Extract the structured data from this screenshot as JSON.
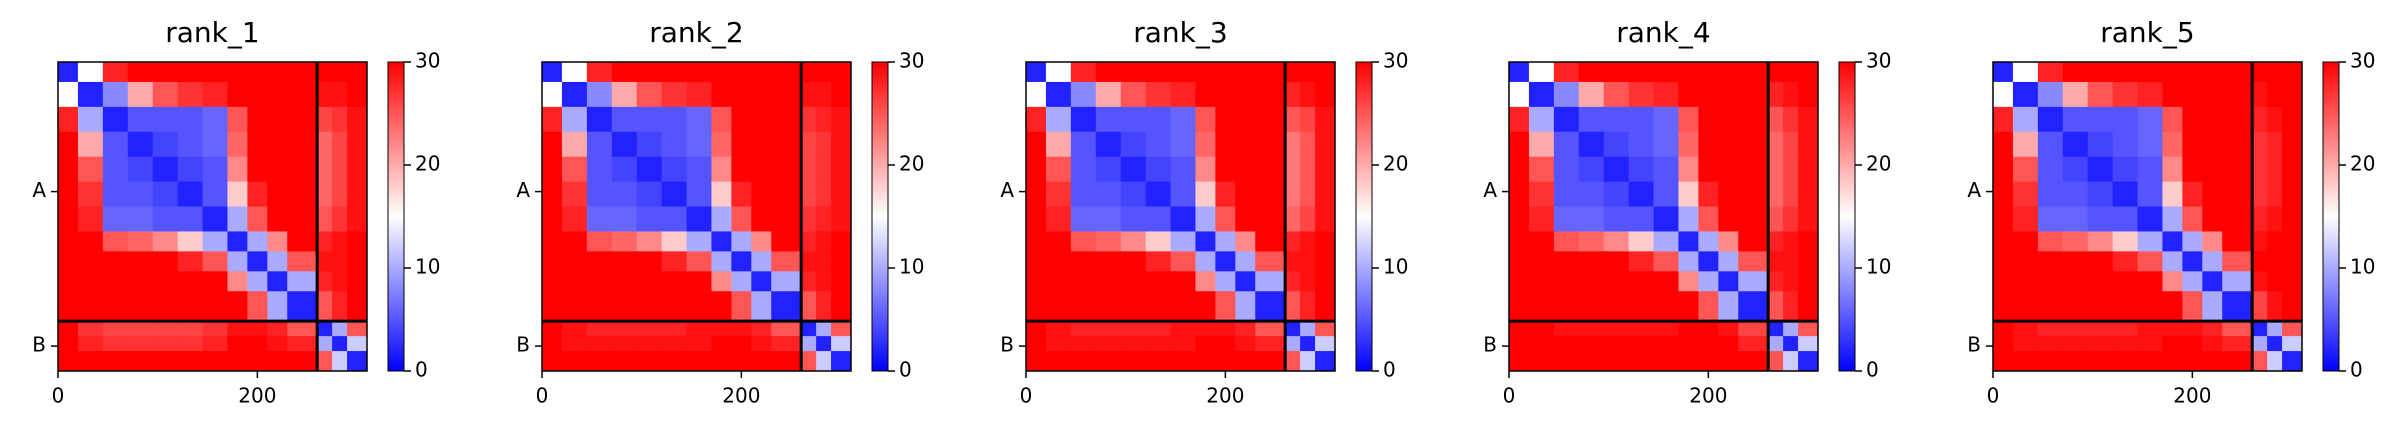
{
  "chart_data": [
    {
      "type": "heatmap",
      "title": "rank_1",
      "x_edges": [
        0,
        20,
        45,
        70,
        95,
        120,
        145,
        170,
        190,
        210,
        230,
        260,
        275,
        290,
        310
      ],
      "z": [
        [
          2,
          15,
          28,
          30,
          30,
          30,
          30,
          30,
          30,
          30,
          30,
          30,
          30,
          30
        ],
        [
          15,
          2,
          8,
          20,
          25,
          27,
          28,
          30,
          30,
          30,
          30,
          29,
          29,
          30
        ],
        [
          28,
          10,
          2,
          5,
          5,
          5,
          6,
          25,
          30,
          30,
          30,
          26,
          27,
          29
        ],
        [
          30,
          20,
          5,
          2,
          4,
          5,
          6,
          24,
          30,
          30,
          30,
          24,
          26,
          29
        ],
        [
          30,
          25,
          5,
          4,
          2,
          4,
          5,
          22,
          30,
          30,
          30,
          24,
          26,
          29
        ],
        [
          30,
          27,
          5,
          5,
          4,
          2,
          5,
          18,
          28,
          30,
          30,
          24,
          26,
          29
        ],
        [
          30,
          28,
          6,
          6,
          5,
          5,
          2,
          10,
          25,
          30,
          30,
          25,
          27,
          29
        ],
        [
          30,
          30,
          25,
          24,
          22,
          18,
          10,
          2,
          10,
          22,
          30,
          28,
          29,
          30
        ],
        [
          30,
          30,
          30,
          30,
          30,
          28,
          25,
          10,
          2,
          10,
          25,
          29,
          29,
          30
        ],
        [
          30,
          30,
          30,
          30,
          30,
          30,
          30,
          22,
          10,
          2,
          10,
          28,
          29,
          30
        ],
        [
          30,
          30,
          30,
          30,
          30,
          30,
          30,
          30,
          25,
          10,
          2,
          25,
          28,
          30
        ],
        [
          30,
          27,
          26,
          26,
          26,
          26,
          27,
          29,
          29,
          28,
          25,
          2,
          10,
          25
        ],
        [
          30,
          28,
          27,
          27,
          27,
          27,
          28,
          30,
          30,
          29,
          28,
          10,
          2,
          12
        ],
        [
          30,
          30,
          30,
          30,
          30,
          30,
          30,
          30,
          30,
          30,
          30,
          25,
          12,
          2
        ]
      ],
      "xlim": [
        0,
        310
      ],
      "ylim": [
        310,
        0
      ],
      "xticks": [
        0,
        200
      ],
      "yticks": [
        {
          "value": 130,
          "label": "A"
        },
        {
          "value": 285,
          "label": "B"
        }
      ],
      "chain_breaks": [
        260
      ],
      "clim": [
        0,
        30
      ],
      "cticks": [
        0,
        10,
        20,
        30
      ],
      "colormap": [
        "#0000ff",
        "#ffffff",
        "#ff0000"
      ]
    },
    {
      "type": "heatmap",
      "title": "rank_2",
      "x_edges": [
        0,
        20,
        45,
        70,
        95,
        120,
        145,
        170,
        190,
        210,
        230,
        260,
        275,
        290,
        310
      ],
      "z": [
        [
          2,
          15,
          28,
          30,
          30,
          30,
          30,
          30,
          30,
          30,
          30,
          30,
          30,
          30
        ],
        [
          15,
          2,
          8,
          20,
          25,
          27,
          28,
          30,
          30,
          30,
          30,
          29,
          29,
          30
        ],
        [
          28,
          10,
          2,
          5,
          5,
          5,
          6,
          25,
          30,
          30,
          30,
          27,
          28,
          29
        ],
        [
          30,
          20,
          5,
          2,
          4,
          5,
          6,
          24,
          30,
          30,
          30,
          26,
          27,
          29
        ],
        [
          30,
          25,
          5,
          4,
          2,
          4,
          5,
          22,
          30,
          30,
          30,
          26,
          27,
          29
        ],
        [
          30,
          27,
          5,
          5,
          4,
          2,
          5,
          18,
          28,
          30,
          30,
          26,
          27,
          29
        ],
        [
          30,
          28,
          6,
          6,
          5,
          5,
          2,
          10,
          25,
          30,
          30,
          27,
          28,
          29
        ],
        [
          30,
          30,
          25,
          24,
          22,
          18,
          10,
          2,
          10,
          22,
          30,
          28,
          29,
          30
        ],
        [
          30,
          30,
          30,
          30,
          30,
          28,
          25,
          10,
          2,
          10,
          25,
          29,
          29,
          30
        ],
        [
          30,
          30,
          30,
          30,
          30,
          30,
          30,
          22,
          10,
          2,
          10,
          28,
          29,
          30
        ],
        [
          30,
          30,
          30,
          30,
          30,
          30,
          30,
          30,
          25,
          10,
          2,
          25,
          28,
          30
        ],
        [
          30,
          29,
          28,
          28,
          28,
          28,
          29,
          29,
          29,
          28,
          25,
          2,
          10,
          25
        ],
        [
          30,
          29,
          29,
          29,
          29,
          29,
          29,
          30,
          30,
          29,
          28,
          10,
          2,
          12
        ],
        [
          30,
          30,
          30,
          30,
          30,
          30,
          30,
          30,
          30,
          30,
          30,
          25,
          12,
          2
        ]
      ],
      "xlim": [
        0,
        310
      ],
      "ylim": [
        310,
        0
      ],
      "xticks": [
        0,
        200
      ],
      "yticks": [
        {
          "value": 130,
          "label": "A"
        },
        {
          "value": 285,
          "label": "B"
        }
      ],
      "chain_breaks": [
        260
      ],
      "clim": [
        0,
        30
      ],
      "cticks": [
        0,
        10,
        20,
        30
      ],
      "colormap": [
        "#0000ff",
        "#ffffff",
        "#ff0000"
      ]
    },
    {
      "type": "heatmap",
      "title": "rank_3",
      "x_edges": [
        0,
        20,
        45,
        70,
        95,
        120,
        145,
        170,
        190,
        210,
        230,
        260,
        275,
        290,
        310
      ],
      "z": [
        [
          2,
          15,
          28,
          30,
          30,
          30,
          30,
          30,
          30,
          30,
          30,
          30,
          30,
          30
        ],
        [
          15,
          2,
          8,
          20,
          25,
          27,
          28,
          30,
          30,
          30,
          30,
          28,
          29,
          30
        ],
        [
          28,
          10,
          2,
          5,
          5,
          5,
          6,
          25,
          30,
          30,
          30,
          25,
          26,
          29
        ],
        [
          30,
          20,
          5,
          2,
          4,
          5,
          6,
          24,
          30,
          30,
          30,
          23,
          25,
          29
        ],
        [
          30,
          25,
          5,
          4,
          2,
          4,
          5,
          22,
          30,
          30,
          30,
          23,
          25,
          29
        ],
        [
          30,
          27,
          5,
          5,
          4,
          2,
          5,
          18,
          28,
          30,
          30,
          23,
          25,
          29
        ],
        [
          30,
          28,
          6,
          6,
          5,
          5,
          2,
          10,
          25,
          30,
          30,
          24,
          26,
          29
        ],
        [
          30,
          30,
          25,
          24,
          22,
          18,
          10,
          2,
          10,
          22,
          30,
          28,
          29,
          30
        ],
        [
          30,
          30,
          30,
          30,
          30,
          28,
          25,
          10,
          2,
          10,
          25,
          29,
          29,
          30
        ],
        [
          30,
          30,
          30,
          30,
          30,
          30,
          30,
          22,
          10,
          2,
          10,
          28,
          29,
          30
        ],
        [
          30,
          30,
          30,
          30,
          30,
          30,
          30,
          30,
          25,
          10,
          2,
          25,
          28,
          30
        ],
        [
          30,
          29,
          28,
          28,
          28,
          28,
          29,
          29,
          29,
          28,
          25,
          2,
          10,
          25
        ],
        [
          30,
          29,
          29,
          29,
          29,
          29,
          29,
          30,
          30,
          29,
          28,
          10,
          2,
          12
        ],
        [
          30,
          30,
          30,
          30,
          30,
          30,
          30,
          30,
          30,
          30,
          30,
          25,
          12,
          2
        ]
      ],
      "xlim": [
        0,
        310
      ],
      "ylim": [
        310,
        0
      ],
      "xticks": [
        0,
        200
      ],
      "yticks": [
        {
          "value": 130,
          "label": "A"
        },
        {
          "value": 285,
          "label": "B"
        }
      ],
      "chain_breaks": [
        260
      ],
      "clim": [
        0,
        30
      ],
      "cticks": [
        0,
        10,
        20,
        30
      ],
      "colormap": [
        "#0000ff",
        "#ffffff",
        "#ff0000"
      ]
    },
    {
      "type": "heatmap",
      "title": "rank_4",
      "x_edges": [
        0,
        20,
        45,
        70,
        95,
        120,
        145,
        170,
        190,
        210,
        230,
        260,
        275,
        290,
        310
      ],
      "z": [
        [
          2,
          15,
          28,
          30,
          30,
          30,
          30,
          30,
          30,
          30,
          30,
          30,
          30,
          30
        ],
        [
          15,
          2,
          8,
          20,
          25,
          27,
          28,
          30,
          30,
          30,
          30,
          28,
          29,
          30
        ],
        [
          28,
          10,
          2,
          5,
          5,
          5,
          6,
          25,
          30,
          30,
          30,
          25,
          27,
          29
        ],
        [
          30,
          20,
          5,
          2,
          4,
          5,
          6,
          24,
          30,
          30,
          30,
          24,
          26,
          29
        ],
        [
          30,
          25,
          5,
          4,
          2,
          4,
          5,
          22,
          30,
          30,
          30,
          24,
          26,
          29
        ],
        [
          30,
          27,
          5,
          5,
          4,
          2,
          5,
          18,
          28,
          30,
          30,
          24,
          26,
          29
        ],
        [
          30,
          28,
          6,
          6,
          5,
          5,
          2,
          10,
          25,
          30,
          30,
          25,
          27,
          29
        ],
        [
          30,
          30,
          25,
          24,
          22,
          18,
          10,
          2,
          10,
          22,
          30,
          28,
          29,
          30
        ],
        [
          30,
          30,
          30,
          30,
          30,
          28,
          25,
          10,
          2,
          10,
          25,
          29,
          29,
          30
        ],
        [
          30,
          30,
          30,
          30,
          30,
          30,
          30,
          22,
          10,
          2,
          10,
          28,
          29,
          30
        ],
        [
          30,
          30,
          30,
          30,
          30,
          30,
          30,
          30,
          25,
          10,
          2,
          25,
          28,
          30
        ],
        [
          30,
          30,
          29,
          29,
          29,
          29,
          29,
          30,
          30,
          29,
          26,
          2,
          10,
          25
        ],
        [
          30,
          30,
          30,
          30,
          30,
          30,
          30,
          30,
          30,
          30,
          28,
          10,
          2,
          12
        ],
        [
          30,
          30,
          30,
          30,
          30,
          30,
          30,
          30,
          30,
          30,
          30,
          25,
          12,
          2
        ]
      ],
      "xlim": [
        0,
        310
      ],
      "ylim": [
        310,
        0
      ],
      "xticks": [
        0,
        200
      ],
      "yticks": [
        {
          "value": 130,
          "label": "A"
        },
        {
          "value": 285,
          "label": "B"
        }
      ],
      "chain_breaks": [
        260
      ],
      "clim": [
        0,
        30
      ],
      "cticks": [
        0,
        10,
        20,
        30
      ],
      "colormap": [
        "#0000ff",
        "#ffffff",
        "#ff0000"
      ]
    },
    {
      "type": "heatmap",
      "title": "rank_5",
      "x_edges": [
        0,
        20,
        45,
        70,
        95,
        120,
        145,
        170,
        190,
        210,
        230,
        260,
        275,
        290,
        310
      ],
      "z": [
        [
          2,
          15,
          28,
          30,
          30,
          30,
          30,
          30,
          30,
          30,
          30,
          30,
          30,
          30
        ],
        [
          15,
          2,
          8,
          20,
          25,
          27,
          28,
          30,
          30,
          30,
          30,
          29,
          30,
          30
        ],
        [
          28,
          10,
          2,
          5,
          5,
          5,
          6,
          25,
          30,
          30,
          30,
          28,
          29,
          30
        ],
        [
          30,
          20,
          5,
          2,
          4,
          5,
          6,
          24,
          30,
          30,
          30,
          27,
          28,
          30
        ],
        [
          30,
          25,
          5,
          4,
          2,
          4,
          5,
          22,
          30,
          30,
          30,
          27,
          28,
          30
        ],
        [
          30,
          27,
          5,
          5,
          4,
          2,
          5,
          18,
          28,
          30,
          30,
          27,
          28,
          30
        ],
        [
          30,
          28,
          6,
          6,
          5,
          5,
          2,
          10,
          25,
          30,
          30,
          28,
          29,
          30
        ],
        [
          30,
          30,
          25,
          24,
          22,
          18,
          10,
          2,
          10,
          22,
          30,
          29,
          30,
          30
        ],
        [
          30,
          30,
          30,
          30,
          30,
          28,
          25,
          10,
          2,
          10,
          25,
          30,
          30,
          30
        ],
        [
          30,
          30,
          30,
          30,
          30,
          30,
          30,
          22,
          10,
          2,
          10,
          29,
          30,
          30
        ],
        [
          30,
          30,
          30,
          30,
          30,
          30,
          30,
          30,
          25,
          10,
          2,
          26,
          29,
          30
        ],
        [
          30,
          29,
          28,
          28,
          28,
          28,
          29,
          29,
          29,
          28,
          25,
          2,
          10,
          25
        ],
        [
          30,
          29,
          29,
          29,
          29,
          29,
          29,
          30,
          30,
          29,
          28,
          10,
          2,
          12
        ],
        [
          30,
          30,
          30,
          30,
          30,
          30,
          30,
          30,
          30,
          30,
          30,
          25,
          12,
          2
        ]
      ],
      "xlim": [
        0,
        310
      ],
      "ylim": [
        310,
        0
      ],
      "xticks": [
        0,
        200
      ],
      "yticks": [
        {
          "value": 130,
          "label": "A"
        },
        {
          "value": 285,
          "label": "B"
        }
      ],
      "chain_breaks": [
        260
      ],
      "clim": [
        0,
        30
      ],
      "cticks": [
        0,
        10,
        20,
        30
      ],
      "colormap": [
        "#0000ff",
        "#ffffff",
        "#ff0000"
      ]
    }
  ]
}
